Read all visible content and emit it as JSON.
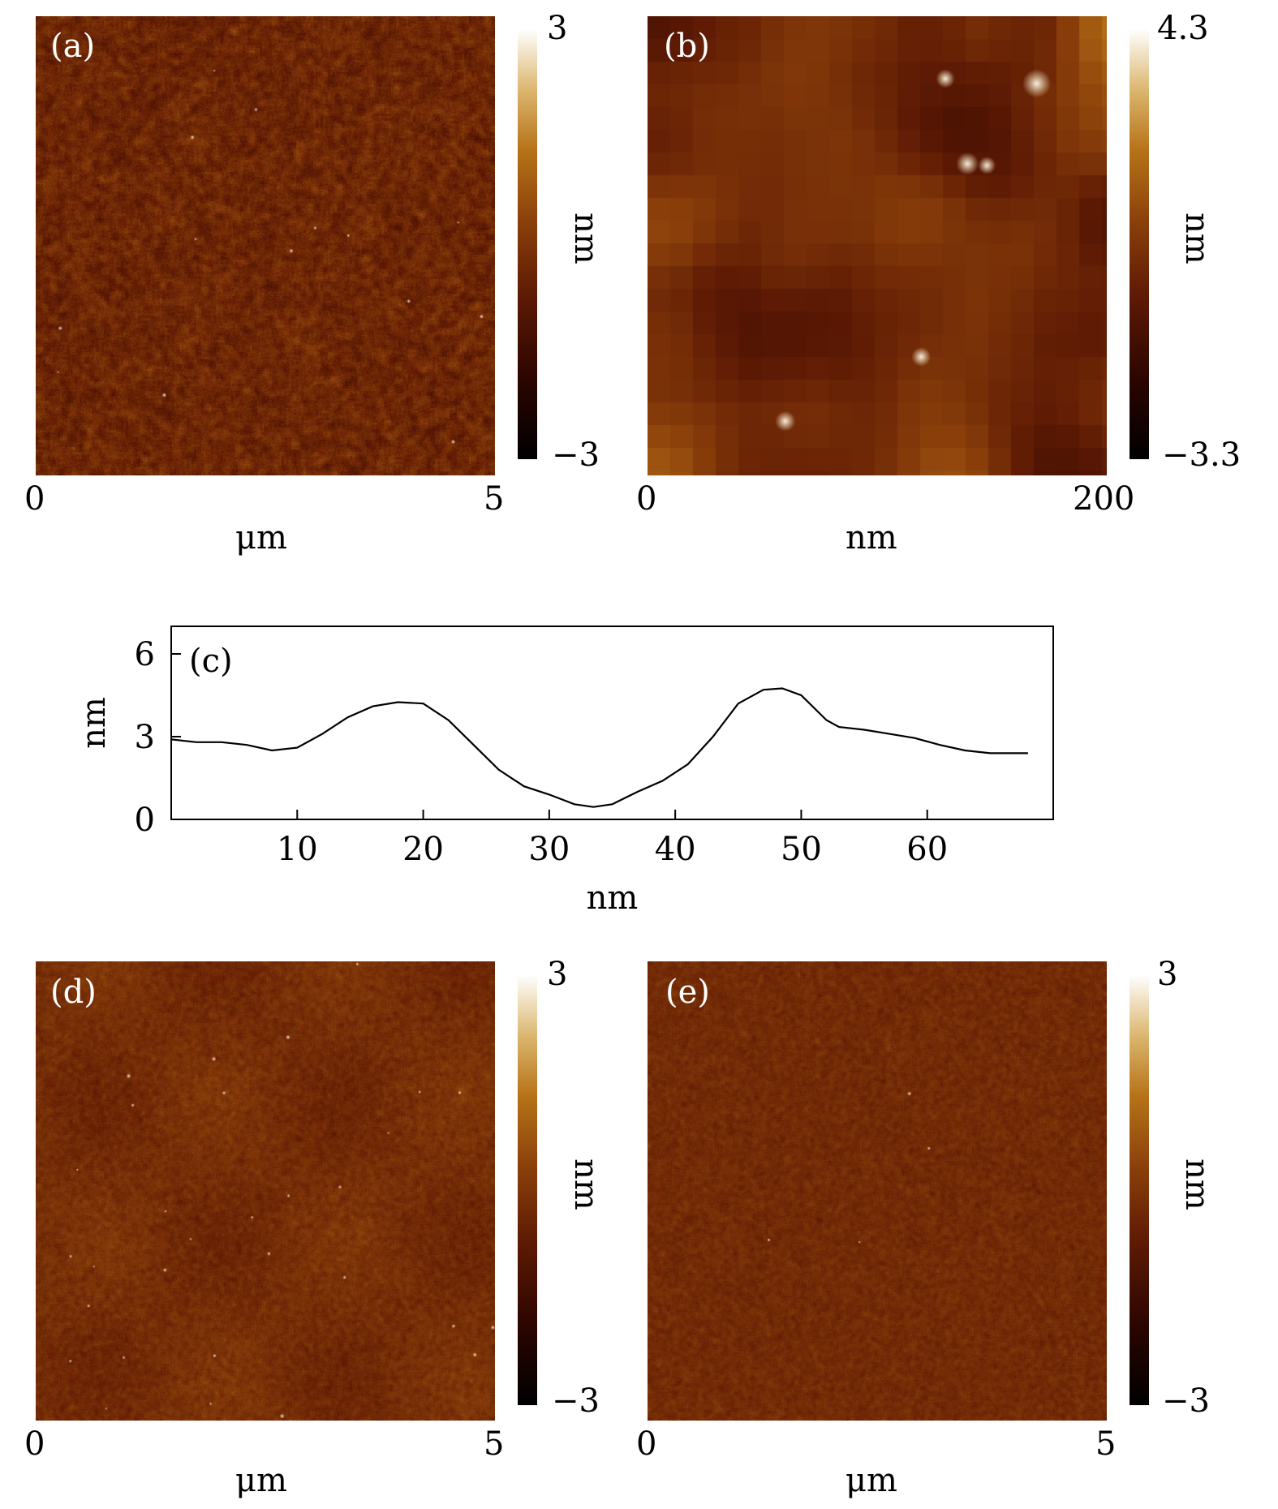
{
  "chart_data": [
    {
      "id": "a",
      "type": "heatmap",
      "label": "(a)",
      "colorbar": {
        "min": "−3",
        "max": "3",
        "unit": "nm",
        "range": [
          -3,
          3
        ]
      },
      "x_ticks": [
        "0",
        "5"
      ],
      "xlabel": "μm",
      "texture": {
        "grain": 2.5,
        "contrast": 0.9,
        "mean": 0.44,
        "blobs": 0,
        "bright_dots": 14
      }
    },
    {
      "id": "b",
      "type": "heatmap",
      "label": "(b)",
      "colorbar": {
        "min": "−3.3",
        "max": "4.3",
        "unit": "nm",
        "range": [
          -3.3,
          4.3
        ]
      },
      "x_ticks": [
        "0",
        "200"
      ],
      "xlabel": "nm",
      "texture": {
        "grain": 28,
        "contrast": 1.0,
        "mean": 0.45,
        "blobs": 1,
        "bright_dots": 6
      }
    },
    {
      "id": "c",
      "type": "line",
      "label": "(c)",
      "xlabel": "nm",
      "ylabel": "nm",
      "xlim": [
        0,
        70
      ],
      "ylim": [
        0,
        7
      ],
      "x_ticks": [
        10,
        20,
        30,
        40,
        50,
        60
      ],
      "y_ticks": [
        0,
        3,
        6
      ],
      "series": [
        {
          "x": [
            0,
            2,
            4,
            6,
            8,
            10,
            12,
            14,
            16,
            18,
            20,
            22,
            24,
            26,
            28,
            30,
            32,
            33.5,
            35,
            37,
            39,
            41,
            43,
            45,
            47,
            48.5,
            50,
            52,
            53,
            55,
            57,
            59,
            61,
            63,
            65,
            67,
            68
          ],
          "y": [
            2.9,
            2.8,
            2.8,
            2.7,
            2.5,
            2.6,
            3.1,
            3.7,
            4.1,
            4.25,
            4.2,
            3.6,
            2.7,
            1.8,
            1.2,
            0.9,
            0.55,
            0.45,
            0.55,
            1.0,
            1.4,
            2.0,
            3.0,
            4.2,
            4.7,
            4.75,
            4.5,
            3.6,
            3.35,
            3.25,
            3.1,
            2.95,
            2.7,
            2.5,
            2.4,
            2.4,
            2.4
          ]
        }
      ]
    },
    {
      "id": "d",
      "type": "heatmap",
      "label": "(d)",
      "colorbar": {
        "min": "−3",
        "max": "3",
        "unit": "nm",
        "range": [
          -3,
          3
        ]
      },
      "x_ticks": [
        "0",
        "5"
      ],
      "xlabel": "μm",
      "texture": {
        "grain": 1.8,
        "contrast": 0.55,
        "mean": 0.47,
        "blobs": 0,
        "bright_dots": 30,
        "mottle": 1
      }
    },
    {
      "id": "e",
      "type": "heatmap",
      "label": "(e)",
      "colorbar": {
        "min": "−3",
        "max": "3",
        "unit": "nm",
        "range": [
          -3,
          3
        ]
      },
      "x_ticks": [
        "0",
        "5"
      ],
      "xlabel": "μm",
      "texture": {
        "grain": 1.5,
        "contrast": 0.5,
        "mean": 0.46,
        "blobs": 0,
        "bright_dots": 4
      }
    }
  ]
}
